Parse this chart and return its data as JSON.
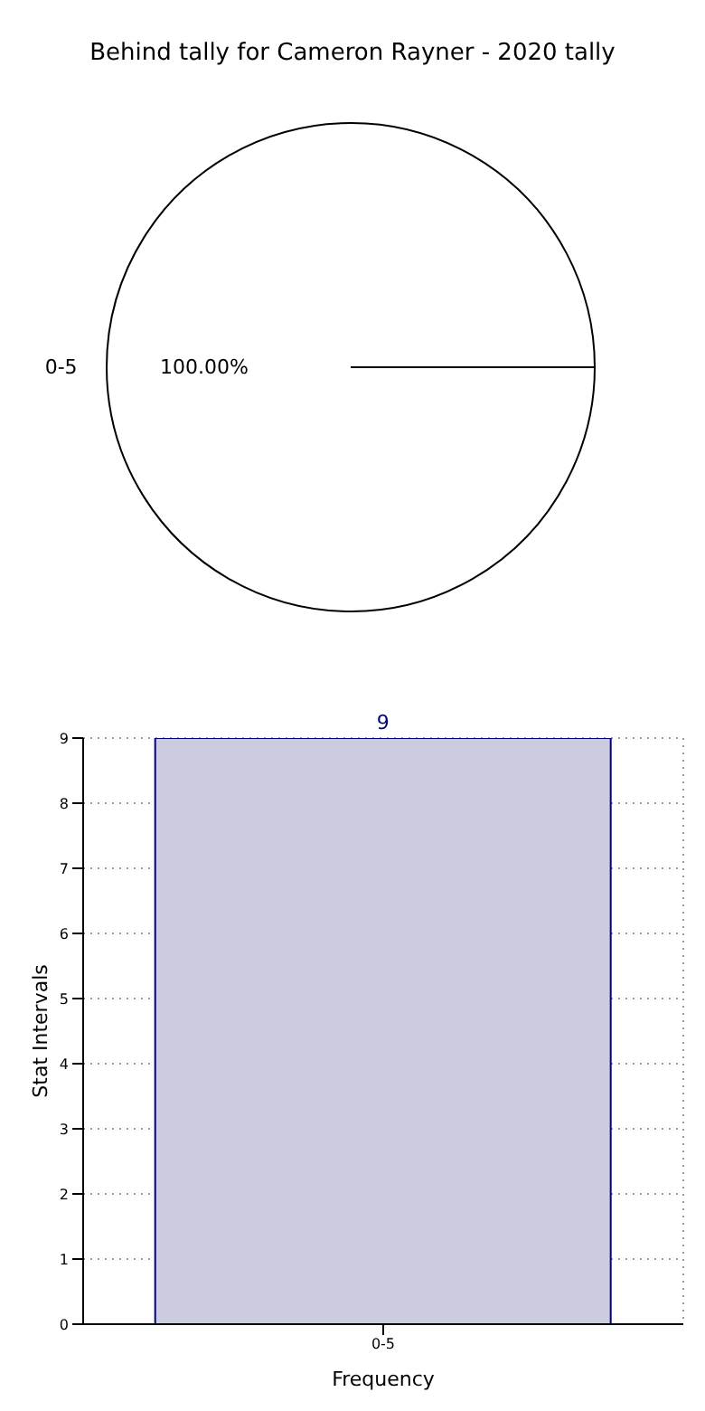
{
  "chart_data": [
    {
      "type": "pie",
      "title": "Behind tally for Cameron Rayner - 2020 tally",
      "categories": [
        "0-5"
      ],
      "values": [
        100
      ],
      "colors": [
        "#ffffff"
      ],
      "value_labels": [
        "100.00%"
      ],
      "legend": false
    },
    {
      "type": "bar",
      "categories": [
        "0-5"
      ],
      "values": [
        9
      ],
      "color": "#ccccdf",
      "data_labels": true,
      "xlabel": "Frequency",
      "ylabel": "Stat Intervals",
      "ylim": [
        0,
        9
      ],
      "yticks": [
        0,
        1,
        2,
        3,
        4,
        5,
        6,
        7,
        8,
        9
      ],
      "grid": true,
      "legend": false
    }
  ]
}
